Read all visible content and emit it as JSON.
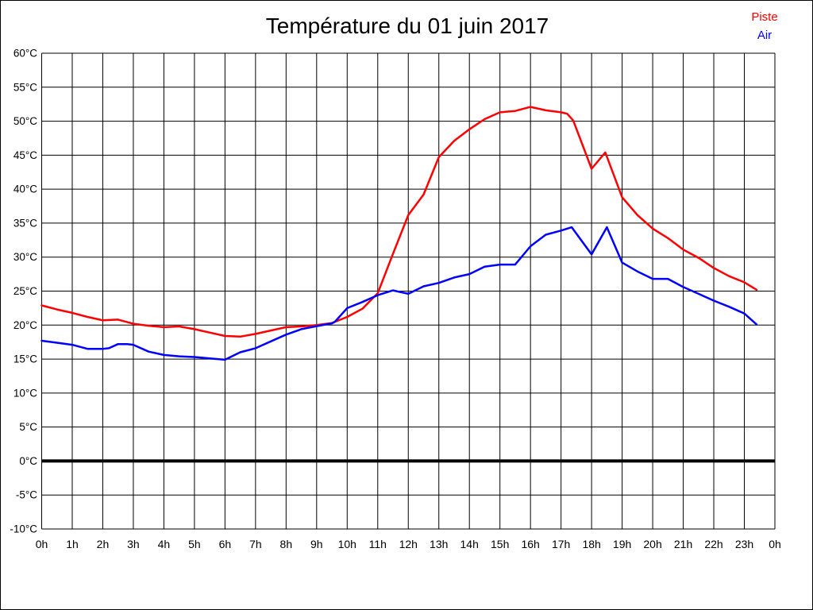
{
  "title": "Température du 01 juin 2017",
  "legend": [
    {
      "label": "Piste",
      "color": "#ff0000"
    },
    {
      "label": "Air",
      "color": "#0000ff"
    }
  ],
  "chart_data": {
    "type": "line",
    "title": "Température du 01 juin 2017",
    "xlabel": "",
    "ylabel": "",
    "xlim": [
      0,
      24
    ],
    "ylim": [
      -10,
      60
    ],
    "grid": true,
    "legend_position": "top-right",
    "x_ticks": [
      0,
      1,
      2,
      3,
      4,
      5,
      6,
      7,
      8,
      9,
      10,
      11,
      12,
      13,
      14,
      15,
      16,
      17,
      18,
      19,
      20,
      21,
      22,
      23,
      24
    ],
    "x_tick_labels": [
      "0h",
      "1h",
      "2h",
      "3h",
      "4h",
      "5h",
      "6h",
      "7h",
      "8h",
      "9h",
      "10h",
      "11h",
      "12h",
      "13h",
      "14h",
      "15h",
      "16h",
      "17h",
      "18h",
      "19h",
      "20h",
      "21h",
      "22h",
      "23h",
      "0h"
    ],
    "y_ticks": [
      60,
      55,
      50,
      45,
      40,
      35,
      30,
      25,
      20,
      15,
      10,
      5,
      0,
      -5,
      -10
    ],
    "y_tick_labels": [
      "60°C",
      "55°C",
      "50°C",
      "45°C",
      "40°C",
      "35°C",
      "30°C",
      "25°C",
      "20°C",
      "15°C",
      "10°C",
      "5°C",
      "0°C",
      "-5°C",
      "-10°C"
    ],
    "zero_line": {
      "value": 0,
      "color": "#000000",
      "thick": true
    },
    "grid_color": "#000000",
    "series": [
      {
        "name": "Piste",
        "color": "#ff0000",
        "points": [
          [
            0,
            22.9
          ],
          [
            0.5,
            22.3
          ],
          [
            1,
            21.8
          ],
          [
            1.5,
            21.2
          ],
          [
            2,
            20.7
          ],
          [
            2.5,
            20.8
          ],
          [
            3,
            20.2
          ],
          [
            3.5,
            19.9
          ],
          [
            4,
            19.7
          ],
          [
            4.5,
            19.8
          ],
          [
            5,
            19.4
          ],
          [
            5.5,
            18.9
          ],
          [
            6,
            18.4
          ],
          [
            6.5,
            18.3
          ],
          [
            7,
            18.7
          ],
          [
            7.5,
            19.2
          ],
          [
            8,
            19.7
          ],
          [
            8.5,
            19.8
          ],
          [
            9,
            20.0
          ],
          [
            9.5,
            20.3
          ],
          [
            10,
            21.2
          ],
          [
            10.5,
            22.4
          ],
          [
            11,
            24.7
          ],
          [
            11.5,
            30.5
          ],
          [
            12,
            36.2
          ],
          [
            12.5,
            39.2
          ],
          [
            13,
            44.7
          ],
          [
            13.5,
            47.1
          ],
          [
            14,
            48.8
          ],
          [
            14.5,
            50.3
          ],
          [
            15,
            51.3
          ],
          [
            15.5,
            51.5
          ],
          [
            16,
            52.1
          ],
          [
            16.5,
            51.6
          ],
          [
            17,
            51.3
          ],
          [
            17.2,
            51.1
          ],
          [
            17.4,
            50.1
          ],
          [
            18,
            43.0
          ],
          [
            18.45,
            45.4
          ],
          [
            19,
            38.8
          ],
          [
            19.5,
            36.2
          ],
          [
            20,
            34.2
          ],
          [
            20.5,
            32.8
          ],
          [
            21,
            31.1
          ],
          [
            21.5,
            29.9
          ],
          [
            22,
            28.4
          ],
          [
            22.5,
            27.2
          ],
          [
            23,
            26.3
          ],
          [
            23.4,
            25.2
          ]
        ]
      },
      {
        "name": "Air",
        "color": "#0000ff",
        "points": [
          [
            0,
            17.7
          ],
          [
            0.5,
            17.4
          ],
          [
            1,
            17.1
          ],
          [
            1.5,
            16.5
          ],
          [
            2,
            16.5
          ],
          [
            2.2,
            16.6
          ],
          [
            2.5,
            17.2
          ],
          [
            2.8,
            17.2
          ],
          [
            3,
            17.1
          ],
          [
            3.5,
            16.1
          ],
          [
            4,
            15.6
          ],
          [
            4.5,
            15.4
          ],
          [
            5,
            15.3
          ],
          [
            5.5,
            15.1
          ],
          [
            6,
            14.9
          ],
          [
            6.5,
            16.0
          ],
          [
            7,
            16.6
          ],
          [
            7.5,
            17.6
          ],
          [
            8,
            18.6
          ],
          [
            8.5,
            19.4
          ],
          [
            9,
            19.85
          ],
          [
            9.5,
            20.25
          ],
          [
            9.6,
            20.5
          ],
          [
            10,
            22.5
          ],
          [
            10.5,
            23.4
          ],
          [
            11,
            24.4
          ],
          [
            11.5,
            25.1
          ],
          [
            12,
            24.6
          ],
          [
            12.5,
            25.7
          ],
          [
            13,
            26.2
          ],
          [
            13.5,
            27.0
          ],
          [
            14,
            27.5
          ],
          [
            14.5,
            28.6
          ],
          [
            15,
            28.9
          ],
          [
            15.5,
            28.9
          ],
          [
            16,
            31.6
          ],
          [
            16.5,
            33.3
          ],
          [
            17,
            33.9
          ],
          [
            17.35,
            34.4
          ],
          [
            18,
            30.4
          ],
          [
            18.5,
            34.4
          ],
          [
            19,
            29.2
          ],
          [
            19.5,
            27.9
          ],
          [
            20,
            26.8
          ],
          [
            20.5,
            26.8
          ],
          [
            21,
            25.6
          ],
          [
            21.5,
            24.6
          ],
          [
            22,
            23.6
          ],
          [
            22.5,
            22.7
          ],
          [
            23,
            21.7
          ],
          [
            23.4,
            20.1
          ]
        ]
      }
    ]
  }
}
